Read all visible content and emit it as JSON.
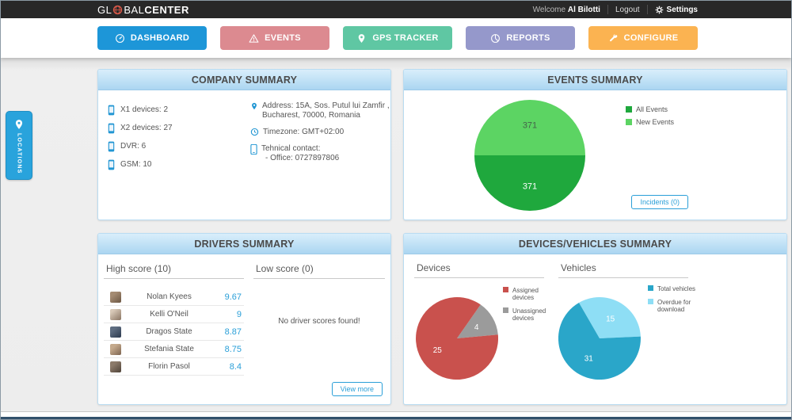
{
  "topbar": {
    "logo_prefix": "GL",
    "logo_mid": "BAL",
    "logo_suffix": "CENTER",
    "welcome_label": "Welcome",
    "username": "Al Bilotti",
    "logout_label": "Logout",
    "settings_label": "Settings"
  },
  "nav": {
    "dashboard": "DASHBOARD",
    "events": "EVENTS",
    "gps_tracker": "GPS TRACKER",
    "reports": "REPORTS",
    "configure": "CONFIGURE",
    "colors": {
      "dashboard": "#1d96d8",
      "events": "#dc8a90",
      "gps_tracker": "#5fc7a3",
      "reports": "#9598cb",
      "configure": "#fbb351"
    }
  },
  "locations_tab": {
    "label": "LOCATIONS"
  },
  "company_summary": {
    "title": "COMPANY SUMMARY",
    "devices": [
      "X1 devices: 2",
      "X2 devices: 27",
      "DVR: 6",
      "GSM: 10"
    ],
    "address_line1": "Address: 15A, Sos. Putul lui Zamfir ,",
    "address_line2": "Bucharest, 70000, Romania",
    "timezone": "Timezone: GMT+02:00",
    "contact_label": "Tehnical contact:",
    "contact_value": "- Office: 0727897806"
  },
  "events_summary": {
    "title": "EVENTS SUMMARY",
    "incidents_button": "Incidents (0)"
  },
  "drivers_summary": {
    "title": "DRIVERS SUMMARY",
    "high_score_header": "High score (10)",
    "low_score_header": "Low score (0)",
    "high_scores": [
      {
        "name": "Nolan Kyees",
        "score": "9.67"
      },
      {
        "name": "Kelli O'Neil",
        "score": "9"
      },
      {
        "name": "Dragos State",
        "score": "8.87"
      },
      {
        "name": "Stefania State",
        "score": "8.75"
      },
      {
        "name": "Florin Pasol",
        "score": "8.4"
      }
    ],
    "low_scores_empty": "No driver scores found!",
    "view_more_button": "View more"
  },
  "devices_vehicles_summary": {
    "title": "DEVICES/VEHICLES SUMMARY",
    "devices_header": "Devices",
    "vehicles_header": "Vehicles"
  },
  "chart_data": [
    {
      "id": "events-pie",
      "type": "pie",
      "title": "EVENTS SUMMARY",
      "start_angle": 270,
      "slices": [
        {
          "label": "New Events",
          "value": 371,
          "color": "#5cd463",
          "label_color": "#44624a"
        },
        {
          "label": "All Events",
          "value": 371,
          "color": "#1fa83d",
          "label_color": "#ffffff"
        }
      ],
      "legend": [
        {
          "label": "All Events",
          "color": "#1fa83d"
        },
        {
          "label": "New Events",
          "color": "#5cd463"
        }
      ]
    },
    {
      "id": "devices-pie",
      "type": "pie",
      "title": "Devices",
      "start_angle": 35,
      "slices": [
        {
          "label": "Unassigned devices",
          "value": 4,
          "color": "#9b9b9b",
          "label_color": "#ffffff"
        },
        {
          "label": "Assigned devices",
          "value": 25,
          "color": "#c9514d",
          "label_color": "#ffffff"
        }
      ],
      "legend": [
        {
          "label": "Assigned devices",
          "color": "#c9514d"
        },
        {
          "label": "Unassigned devices",
          "color": "#9b9b9b"
        }
      ]
    },
    {
      "id": "vehicles-pie",
      "type": "pie",
      "title": "Vehicles",
      "start_angle": 330,
      "slices": [
        {
          "label": "Overdue for download",
          "value": 15,
          "color": "#8edef5",
          "label_color": "#ffffff"
        },
        {
          "label": "Total vehicles",
          "value": 31,
          "color": "#2aa6c9",
          "label_color": "#ffffff"
        }
      ],
      "legend": [
        {
          "label": "Total vehicles",
          "color": "#2aa6c9"
        },
        {
          "label": "Overdue for download",
          "color": "#8edef5"
        }
      ]
    }
  ],
  "colors": {
    "accent_blue": "#29a3dc",
    "topbar_bg": "#282828",
    "content_bg": "#ededed",
    "panel_header_bg": "#abd6f1"
  }
}
